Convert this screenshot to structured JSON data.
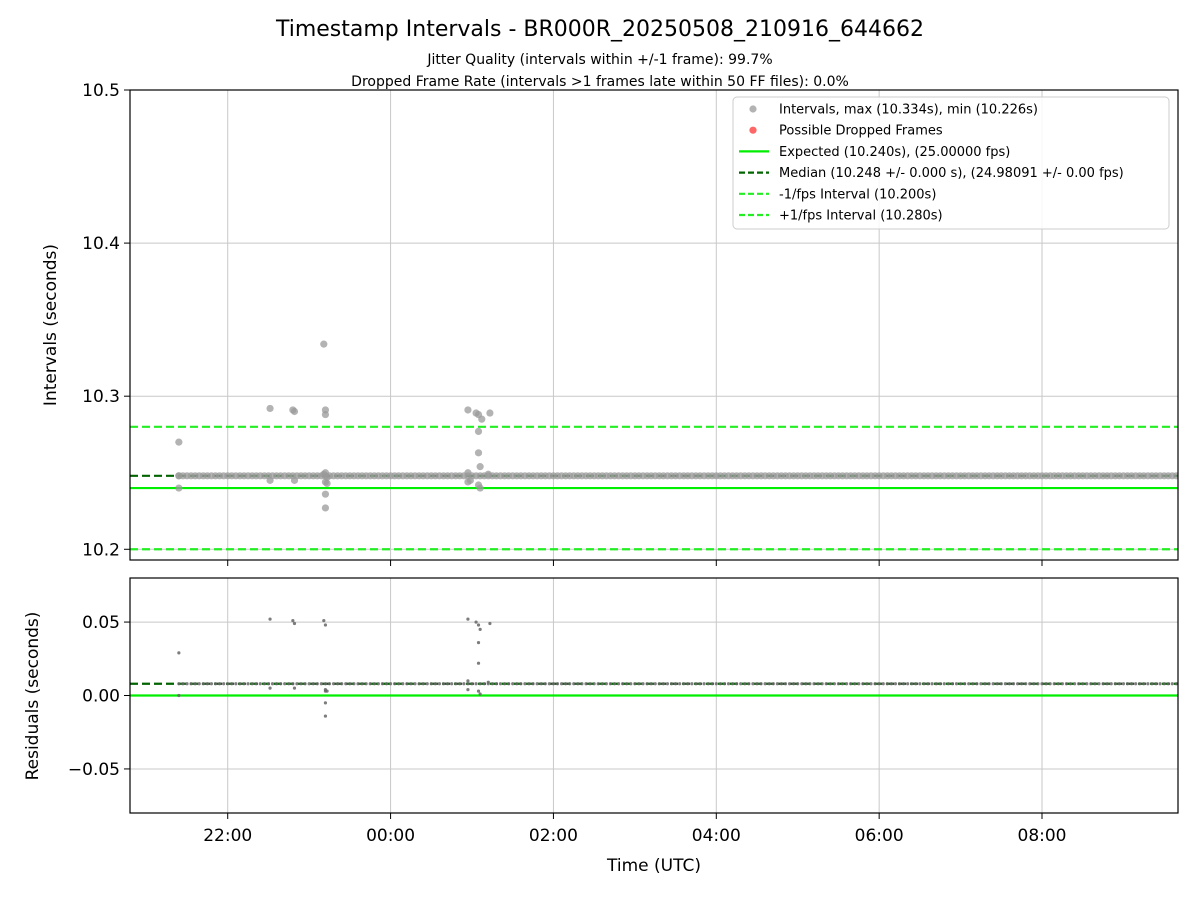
{
  "title": "Timestamp Intervals - BR000R_20250508_210916_644662",
  "subtitle_lines": [
    "Jitter Quality (intervals within +/-1 frame): 99.7%",
    "Dropped Frame Rate (intervals >1 frames late within 50 FF files): 0.0%"
  ],
  "colors": {
    "intervals": "#999999",
    "dropped": "#ff5555",
    "expected": "#00ee00",
    "median": "#006400",
    "fps_bounds": "#22ee22",
    "residual_points": "#666666",
    "grid": "#c8c8c8"
  },
  "chart_data": [
    {
      "type": "scatter",
      "ylabel": "Intervals (seconds)",
      "xlabel": "",
      "x_unit": "hours since 00:00 UTC",
      "xlim": [
        -3.2,
        9.67
      ],
      "ylim": [
        10.193,
        10.5
      ],
      "yticks": [
        10.2,
        10.3,
        10.4,
        10.5
      ],
      "ytick_labels": [
        "10.2",
        "10.3",
        "10.4",
        "10.5"
      ],
      "xticks": [
        -2,
        0,
        2,
        4,
        6,
        8
      ],
      "grid": true,
      "legend_position": "top-right",
      "legend": [
        {
          "label": "Intervals, max (10.334s), min (10.226s)",
          "kind": "marker",
          "color": "#999999"
        },
        {
          "label": "Possible Dropped Frames",
          "kind": "marker",
          "color": "#ff5555"
        },
        {
          "label": "Expected (10.240s), (25.00000 fps)",
          "kind": "line",
          "color": "#00ee00",
          "dash": "solid"
        },
        {
          "label": "Median (10.248 +/- 0.000 s), (24.98091 +/- 0.00 fps)",
          "kind": "line",
          "color": "#006400",
          "dash": "dashed"
        },
        {
          "label": "-1/fps Interval (10.200s)",
          "kind": "line",
          "color": "#22ee22",
          "dash": "dashed"
        },
        {
          "label": "+1/fps Interval (10.280s)",
          "kind": "line",
          "color": "#22ee22",
          "dash": "dashed"
        }
      ],
      "hlines": [
        {
          "name": "expected",
          "y": 10.24,
          "color": "#00ee00",
          "dash": "solid"
        },
        {
          "name": "median",
          "y": 10.248,
          "color": "#006400",
          "dash": "dashed"
        },
        {
          "name": "minus-fps",
          "y": 10.2,
          "color": "#22ee22",
          "dash": "dashed"
        },
        {
          "name": "plus-fps",
          "y": 10.28,
          "color": "#22ee22",
          "dash": "dashed"
        }
      ],
      "baseline": {
        "y": 10.248,
        "x_start": -2.6,
        "x_end": 9.67,
        "step": 0.05
      },
      "series": [
        {
          "name": "Intervals, max (10.334s), min (10.226s)",
          "x": [
            -2.6,
            -2.6,
            -2.6,
            -1.48,
            -1.48,
            -1.2,
            -1.18,
            -1.18,
            -0.82,
            -0.8,
            -0.8,
            -0.8,
            -0.8,
            -0.78,
            -0.78,
            -0.8,
            -0.8,
            -0.82,
            0.95,
            0.95,
            0.95,
            0.98,
            1.05,
            1.08,
            1.08,
            1.08,
            1.1,
            1.08,
            1.12,
            1.22,
            1.2,
            1.1
          ],
          "y": [
            10.27,
            10.248,
            10.24,
            10.292,
            10.245,
            10.291,
            10.29,
            10.245,
            10.334,
            10.291,
            10.288,
            10.25,
            10.244,
            10.243,
            10.247,
            10.236,
            10.227,
            10.249,
            10.291,
            10.25,
            10.244,
            10.245,
            10.289,
            10.288,
            10.277,
            10.263,
            10.254,
            10.242,
            10.285,
            10.289,
            10.249,
            10.24
          ]
        },
        {
          "name": "Possible Dropped Frames",
          "x": [],
          "y": []
        }
      ]
    },
    {
      "type": "scatter",
      "ylabel": "Residuals (seconds)",
      "xlabel": "Time (UTC)",
      "xlim": [
        -3.2,
        9.67
      ],
      "ylim": [
        -0.08,
        0.08
      ],
      "yticks": [
        -0.05,
        0.0,
        0.05
      ],
      "ytick_labels": [
        "−0.05",
        "0.00",
        "0.05"
      ],
      "xticks": [
        -2,
        0,
        2,
        4,
        6,
        8
      ],
      "xtick_labels": [
        "22:00",
        "00:00",
        "02:00",
        "04:00",
        "06:00",
        "08:00"
      ],
      "grid": true,
      "hlines": [
        {
          "name": "residual-expected",
          "y": 0.0,
          "color": "#00ee00",
          "dash": "solid"
        },
        {
          "name": "residual-median",
          "y": 0.008,
          "color": "#006400",
          "dash": "dashed"
        }
      ],
      "baseline": {
        "y": 0.008,
        "x_start": -2.6,
        "x_end": 9.67,
        "step": 0.05
      },
      "series": [
        {
          "name": "residuals",
          "x": [
            -2.6,
            -2.6,
            -1.48,
            -1.48,
            -1.2,
            -1.18,
            -1.18,
            -0.82,
            -0.8,
            -0.8,
            -0.8,
            -0.78,
            -0.8,
            -0.8,
            0.95,
            0.95,
            0.95,
            1.05,
            1.08,
            1.08,
            1.08,
            1.1,
            1.08,
            1.1,
            1.22,
            1.2
          ],
          "y": [
            0.029,
            0.0,
            0.052,
            0.005,
            0.051,
            0.049,
            0.005,
            0.051,
            0.048,
            0.003,
            0.004,
            0.003,
            -0.005,
            -0.014,
            0.052,
            0.01,
            0.004,
            0.05,
            0.048,
            0.036,
            0.022,
            0.045,
            0.003,
            0.001,
            0.049,
            0.009
          ]
        }
      ]
    }
  ]
}
